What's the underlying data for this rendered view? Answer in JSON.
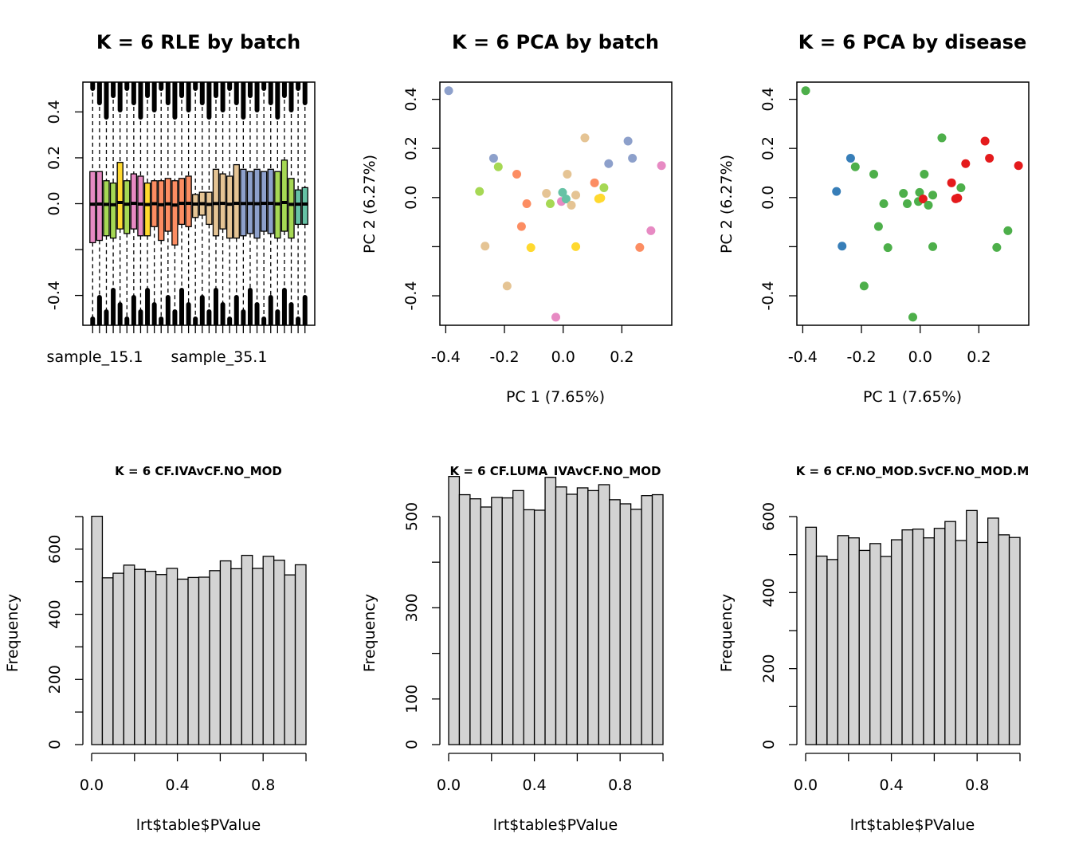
{
  "chart_data": [
    {
      "type": "boxplot",
      "title": "K = 6 RLE by batch",
      "xlabel": "",
      "ylabel": "",
      "ylim": [
        -0.53,
        0.53
      ],
      "yticks": [
        -0.4,
        -0.2,
        0.0,
        0.2,
        0.4
      ],
      "ytick_labels": [
        "-0.4",
        "",
        "0.0",
        "0.2",
        "0.4"
      ],
      "xtick_labels": [
        "sample_15.1",
        "sample_35.1"
      ],
      "boxes": [
        {
          "q1": -0.17,
          "q3": 0.14,
          "color": "#e78ac3"
        },
        {
          "q1": -0.16,
          "q3": 0.14,
          "color": "#e78ac3"
        },
        {
          "q1": -0.14,
          "q3": 0.1,
          "color": "#a6d854"
        },
        {
          "q1": -0.15,
          "q3": 0.09,
          "color": "#a6d854"
        },
        {
          "q1": -0.11,
          "q3": 0.18,
          "color": "#ffd92f"
        },
        {
          "q1": -0.13,
          "q3": 0.1,
          "color": "#a6d854"
        },
        {
          "q1": -0.11,
          "q3": 0.13,
          "color": "#e78ac3"
        },
        {
          "q1": -0.14,
          "q3": 0.12,
          "color": "#e78ac3"
        },
        {
          "q1": -0.14,
          "q3": 0.09,
          "color": "#ffd92f"
        },
        {
          "q1": -0.1,
          "q3": 0.1,
          "color": "#fc8d62"
        },
        {
          "q1": -0.16,
          "q3": 0.1,
          "color": "#fc8d62"
        },
        {
          "q1": -0.12,
          "q3": 0.11,
          "color": "#fc8d62"
        },
        {
          "q1": -0.18,
          "q3": 0.1,
          "color": "#fc8d62"
        },
        {
          "q1": -0.09,
          "q3": 0.11,
          "color": "#fc8d62"
        },
        {
          "q1": -0.1,
          "q3": 0.12,
          "color": "#fc8d62"
        },
        {
          "q1": -0.06,
          "q3": 0.04,
          "color": "#e5c494"
        },
        {
          "q1": -0.05,
          "q3": 0.05,
          "color": "#e5c494"
        },
        {
          "q1": -0.09,
          "q3": 0.05,
          "color": "#e5c494"
        },
        {
          "q1": -0.14,
          "q3": 0.15,
          "color": "#e5c494"
        },
        {
          "q1": -0.11,
          "q3": 0.13,
          "color": "#e5c494"
        },
        {
          "q1": -0.15,
          "q3": 0.12,
          "color": "#e5c494"
        },
        {
          "q1": -0.15,
          "q3": 0.17,
          "color": "#e5c494"
        },
        {
          "q1": -0.14,
          "q3": 0.15,
          "color": "#8da0cb"
        },
        {
          "q1": -0.13,
          "q3": 0.14,
          "color": "#8da0cb"
        },
        {
          "q1": -0.15,
          "q3": 0.15,
          "color": "#8da0cb"
        },
        {
          "q1": -0.12,
          "q3": 0.14,
          "color": "#8da0cb"
        },
        {
          "q1": -0.13,
          "q3": 0.15,
          "color": "#8da0cb"
        },
        {
          "q1": -0.15,
          "q3": 0.14,
          "color": "#a6d854"
        },
        {
          "q1": -0.12,
          "q3": 0.19,
          "color": "#a6d854"
        },
        {
          "q1": -0.15,
          "q3": 0.11,
          "color": "#a6d854"
        },
        {
          "q1": -0.09,
          "q3": 0.06,
          "color": "#66c2a5"
        },
        {
          "q1": -0.09,
          "q3": 0.07,
          "color": "#66c2a5"
        }
      ]
    },
    {
      "type": "scatter",
      "title": "K = 6 PCA by batch",
      "xlabel": "PC 1 (7.65%)",
      "ylabel": "PC 2 (6.27%)",
      "xlim": [
        -0.42,
        0.37
      ],
      "ylim": [
        -0.52,
        0.47
      ],
      "xticks": [
        -0.4,
        -0.2,
        0.0,
        0.2
      ],
      "xtick_labels": [
        "-0.4",
        "-0.2",
        "0.0",
        "0.2"
      ],
      "yticks": [
        -0.4,
        -0.2,
        0.0,
        0.2,
        0.4
      ],
      "ytick_labels": [
        "-0.4",
        "",
        "0.0",
        "0.2",
        "0.4"
      ],
      "points": [
        {
          "x": -0.39,
          "y": 0.435,
          "color": "#8da0cb"
        },
        {
          "x": -0.237,
          "y": 0.16,
          "color": "#8da0cb"
        },
        {
          "x": -0.221,
          "y": 0.125,
          "color": "#a6d854"
        },
        {
          "x": -0.285,
          "y": 0.025,
          "color": "#a6d854"
        },
        {
          "x": -0.158,
          "y": 0.095,
          "color": "#fc8d62"
        },
        {
          "x": -0.124,
          "y": -0.025,
          "color": "#fc8d62"
        },
        {
          "x": -0.142,
          "y": -0.118,
          "color": "#fc8d62"
        },
        {
          "x": -0.266,
          "y": -0.198,
          "color": "#e5c494"
        },
        {
          "x": -0.191,
          "y": -0.36,
          "color": "#e5c494"
        },
        {
          "x": -0.11,
          "y": -0.204,
          "color": "#ffd92f"
        },
        {
          "x": -0.057,
          "y": 0.017,
          "color": "#e5c494"
        },
        {
          "x": -0.044,
          "y": -0.025,
          "color": "#a6d854"
        },
        {
          "x": -0.002,
          "y": 0.021,
          "color": "#66c2a5"
        },
        {
          "x": -0.006,
          "y": -0.016,
          "color": "#e78ac3"
        },
        {
          "x": 0.01,
          "y": -0.006,
          "color": "#66c2a5"
        },
        {
          "x": 0.014,
          "y": 0.095,
          "color": "#e5c494"
        },
        {
          "x": 0.028,
          "y": -0.031,
          "color": "#e5c494"
        },
        {
          "x": 0.043,
          "y": 0.01,
          "color": "#e5c494"
        },
        {
          "x": 0.074,
          "y": 0.243,
          "color": "#e5c494"
        },
        {
          "x": 0.107,
          "y": 0.06,
          "color": "#fc8d62"
        },
        {
          "x": 0.121,
          "y": -0.005,
          "color": "#ffd92f"
        },
        {
          "x": 0.128,
          "y": -0.002,
          "color": "#ffd92f"
        },
        {
          "x": 0.139,
          "y": 0.04,
          "color": "#a6d854"
        },
        {
          "x": 0.155,
          "y": 0.138,
          "color": "#8da0cb"
        },
        {
          "x": 0.221,
          "y": 0.23,
          "color": "#8da0cb"
        },
        {
          "x": 0.236,
          "y": 0.16,
          "color": "#8da0cb"
        },
        {
          "x": 0.043,
          "y": -0.2,
          "color": "#ffd92f"
        },
        {
          "x": -0.025,
          "y": -0.487,
          "color": "#e78ac3"
        },
        {
          "x": 0.261,
          "y": -0.203,
          "color": "#fc8d62"
        },
        {
          "x": 0.299,
          "y": -0.135,
          "color": "#e78ac3"
        },
        {
          "x": 0.335,
          "y": 0.13,
          "color": "#e78ac3"
        }
      ]
    },
    {
      "type": "scatter",
      "title": "K = 6 PCA by disease",
      "xlabel": "PC 1 (7.65%)",
      "ylabel": "PC 2 (6.27%)",
      "xlim": [
        -0.42,
        0.37
      ],
      "ylim": [
        -0.52,
        0.47
      ],
      "xticks": [
        -0.4,
        -0.2,
        0.0,
        0.2
      ],
      "xtick_labels": [
        "-0.4",
        "-0.2",
        "0.0",
        "0.2"
      ],
      "yticks": [
        -0.4,
        -0.2,
        0.0,
        0.2,
        0.4
      ],
      "ytick_labels": [
        "-0.4",
        "",
        "0.0",
        "0.2",
        "0.4"
      ],
      "points": [
        {
          "x": -0.39,
          "y": 0.435,
          "color": "#4daf4a"
        },
        {
          "x": -0.237,
          "y": 0.16,
          "color": "#377eb8"
        },
        {
          "x": -0.221,
          "y": 0.125,
          "color": "#4daf4a"
        },
        {
          "x": -0.285,
          "y": 0.025,
          "color": "#377eb8"
        },
        {
          "x": -0.158,
          "y": 0.095,
          "color": "#4daf4a"
        },
        {
          "x": -0.124,
          "y": -0.025,
          "color": "#4daf4a"
        },
        {
          "x": -0.142,
          "y": -0.118,
          "color": "#4daf4a"
        },
        {
          "x": -0.266,
          "y": -0.198,
          "color": "#377eb8"
        },
        {
          "x": -0.191,
          "y": -0.36,
          "color": "#4daf4a"
        },
        {
          "x": -0.11,
          "y": -0.204,
          "color": "#4daf4a"
        },
        {
          "x": -0.057,
          "y": 0.017,
          "color": "#4daf4a"
        },
        {
          "x": -0.044,
          "y": -0.025,
          "color": "#4daf4a"
        },
        {
          "x": -0.002,
          "y": 0.021,
          "color": "#4daf4a"
        },
        {
          "x": -0.006,
          "y": -0.016,
          "color": "#4daf4a"
        },
        {
          "x": 0.01,
          "y": -0.006,
          "color": "#e41a1c"
        },
        {
          "x": 0.014,
          "y": 0.095,
          "color": "#4daf4a"
        },
        {
          "x": 0.028,
          "y": -0.031,
          "color": "#4daf4a"
        },
        {
          "x": 0.043,
          "y": 0.01,
          "color": "#4daf4a"
        },
        {
          "x": 0.074,
          "y": 0.243,
          "color": "#4daf4a"
        },
        {
          "x": 0.107,
          "y": 0.06,
          "color": "#e41a1c"
        },
        {
          "x": 0.121,
          "y": -0.005,
          "color": "#e41a1c"
        },
        {
          "x": 0.128,
          "y": -0.002,
          "color": "#e41a1c"
        },
        {
          "x": 0.139,
          "y": 0.04,
          "color": "#4daf4a"
        },
        {
          "x": 0.155,
          "y": 0.138,
          "color": "#e41a1c"
        },
        {
          "x": 0.221,
          "y": 0.23,
          "color": "#e41a1c"
        },
        {
          "x": 0.236,
          "y": 0.16,
          "color": "#e41a1c"
        },
        {
          "x": 0.043,
          "y": -0.2,
          "color": "#4daf4a"
        },
        {
          "x": -0.025,
          "y": -0.487,
          "color": "#4daf4a"
        },
        {
          "x": 0.261,
          "y": -0.203,
          "color": "#4daf4a"
        },
        {
          "x": 0.299,
          "y": -0.135,
          "color": "#4daf4a"
        },
        {
          "x": 0.335,
          "y": 0.13,
          "color": "#e41a1c"
        }
      ]
    },
    {
      "type": "histogram",
      "title": "K = 6 CF.IVAvCF.NO_MOD",
      "xlabel": "lrt$table$PValue",
      "ylabel": "Frequency",
      "xlim": [
        0,
        1
      ],
      "ylim": [
        0,
        700
      ],
      "xticks": [
        0.0,
        0.2,
        0.4,
        0.6,
        0.8,
        1.0
      ],
      "xtick_labels": [
        "0.0",
        "",
        "0.4",
        "",
        "0.8",
        ""
      ],
      "yticks": [
        0,
        100,
        200,
        300,
        400,
        500,
        600,
        700
      ],
      "ytick_labels": [
        "0",
        "",
        "200",
        "",
        "400",
        "",
        "600",
        ""
      ],
      "bin_edges": [
        0,
        0.05,
        0.1,
        0.15,
        0.2,
        0.25,
        0.3,
        0.35,
        0.4,
        0.45,
        0.5,
        0.55,
        0.6,
        0.65,
        0.7,
        0.75,
        0.8,
        0.85,
        0.9,
        0.95,
        1.0
      ],
      "counts": [
        701,
        512,
        526,
        551,
        538,
        532,
        522,
        541,
        508,
        513,
        514,
        534,
        564,
        540,
        581,
        541,
        578,
        566,
        521,
        552
      ]
    },
    {
      "type": "histogram",
      "title": "K = 6 CF.LUMA_IVAvCF.NO_MOD",
      "xlabel": "lrt$table$PValue",
      "ylabel": "Frequency",
      "xlim": [
        0,
        1
      ],
      "ylim": [
        0,
        600
      ],
      "xticks": [
        0.0,
        0.2,
        0.4,
        0.6,
        0.8,
        1.0
      ],
      "xtick_labels": [
        "0.0",
        "",
        "0.4",
        "",
        "0.8",
        ""
      ],
      "yticks": [
        0,
        100,
        200,
        300,
        400,
        500
      ],
      "ytick_labels": [
        "0",
        "100",
        "",
        "300",
        "",
        "500"
      ],
      "bin_edges": [
        0,
        0.05,
        0.1,
        0.15,
        0.2,
        0.25,
        0.3,
        0.35,
        0.4,
        0.45,
        0.5,
        0.55,
        0.6,
        0.65,
        0.7,
        0.75,
        0.8,
        0.85,
        0.9,
        0.95,
        1.0
      ],
      "counts": [
        588,
        548,
        539,
        521,
        542,
        541,
        557,
        515,
        514,
        586,
        565,
        549,
        563,
        557,
        570,
        537,
        528,
        516,
        546,
        548
      ]
    },
    {
      "type": "histogram",
      "title": "K = 6 CF.NO_MOD.SvCF.NO_MOD.M",
      "xlabel": "lrt$table$PValue",
      "ylabel": "Frequency",
      "xlim": [
        0,
        1
      ],
      "ylim": [
        0,
        600
      ],
      "xticks": [
        0.0,
        0.2,
        0.4,
        0.6,
        0.8,
        1.0
      ],
      "xtick_labels": [
        "0.0",
        "",
        "0.4",
        "",
        "0.8",
        ""
      ],
      "yticks": [
        0,
        100,
        200,
        300,
        400,
        500,
        600
      ],
      "ytick_labels": [
        "0",
        "",
        "200",
        "",
        "400",
        "",
        "600"
      ],
      "bin_edges": [
        0,
        0.05,
        0.1,
        0.15,
        0.2,
        0.25,
        0.3,
        0.35,
        0.4,
        0.45,
        0.5,
        0.55,
        0.6,
        0.65,
        0.7,
        0.75,
        0.8,
        0.85,
        0.9,
        0.95,
        1.0
      ],
      "counts": [
        572,
        496,
        487,
        550,
        544,
        511,
        529,
        495,
        539,
        565,
        567,
        544,
        569,
        587,
        537,
        616,
        532,
        596,
        552,
        545
      ]
    }
  ]
}
